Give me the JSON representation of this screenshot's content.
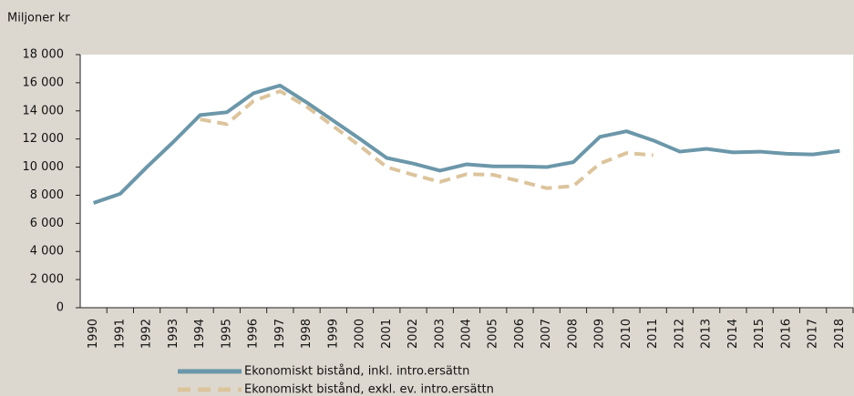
{
  "chart_data": {
    "type": "line",
    "y_axis_label": "Miljoner kr",
    "categories": [
      "1990",
      "1991",
      "1992",
      "1993",
      "1994",
      "1995",
      "1996",
      "1997",
      "1998",
      "1999",
      "2000",
      "2001",
      "2002",
      "2003",
      "2004",
      "2005",
      "2006",
      "2007",
      "2008",
      "2009",
      "2010",
      "2011",
      "2012",
      "2013",
      "2014",
      "2015",
      "2016",
      "2017",
      "2018"
    ],
    "series": [
      {
        "name": "Ekonomiskt bistånd, inkl. intro.ersättn",
        "color": "#6b97a9",
        "dashed": false,
        "values": [
          7450,
          8100,
          10000,
          11800,
          13700,
          13900,
          15250,
          15800,
          14600,
          13300,
          12000,
          10650,
          10250,
          9750,
          10200,
          10050,
          10050,
          10000,
          10350,
          12150,
          12550,
          11900,
          11100,
          11300,
          11050,
          11100,
          10950,
          10900,
          11150
        ]
      },
      {
        "name": "Ekonomiskt bistånd, exkl. ev. intro.ersättn",
        "color": "#dcc49c",
        "dashed": true,
        "values": [
          null,
          null,
          null,
          null,
          13400,
          13050,
          14700,
          15400,
          14300,
          12900,
          11500,
          10000,
          9450,
          8950,
          9500,
          9450,
          9000,
          8500,
          8650,
          10250,
          11000,
          10850,
          null,
          null,
          null,
          null,
          null,
          null,
          null
        ]
      }
    ],
    "ylim": [
      0,
      18000
    ],
    "yticks": [
      0,
      {
        "value": 2000,
        "label": "2 000"
      },
      {
        "value": 4000,
        "label": "4 000"
      },
      {
        "value": 6000,
        "label": "6 000"
      },
      {
        "value": 8000,
        "label": "8 000"
      },
      {
        "value": 10000,
        "label": "10 000"
      },
      {
        "value": 12000,
        "label": "12 000"
      },
      {
        "value": 14000,
        "label": "14 000"
      },
      {
        "value": 16000,
        "label": "16 000"
      },
      {
        "value": 18000,
        "label": "18 000"
      }
    ],
    "grid": false,
    "legend": "bottom"
  }
}
